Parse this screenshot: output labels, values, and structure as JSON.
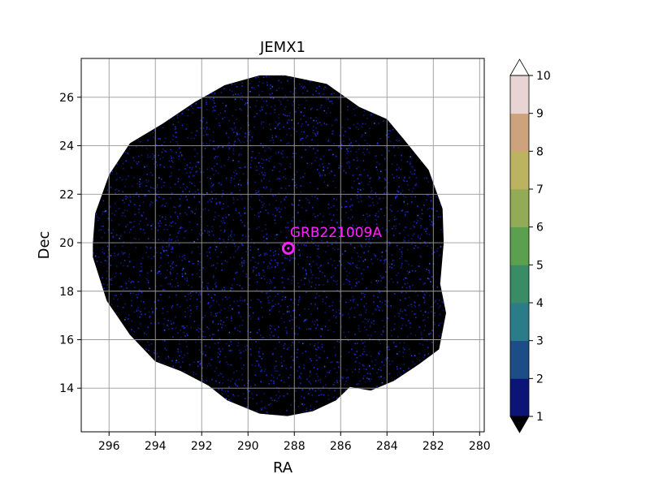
{
  "chart_data": {
    "type": "heatmap",
    "title": "JEMX1",
    "xlabel": "RA",
    "ylabel": "Dec",
    "xlim": [
      297.2,
      279.8
    ],
    "ylim": [
      12.2,
      27.6
    ],
    "x_ticks": [
      296,
      294,
      292,
      290,
      288,
      286,
      284,
      282,
      280
    ],
    "y_ticks": [
      14,
      16,
      18,
      20,
      22,
      24,
      26
    ],
    "grid": true,
    "colorbar": {
      "ticks": [
        1,
        2,
        3,
        4,
        5,
        6,
        7,
        8,
        9,
        10
      ],
      "colors": [
        "#0d1478",
        "#1d4d86",
        "#2a7d88",
        "#3a8c66",
        "#5ba04f",
        "#93ab56",
        "#bbb35f",
        "#cda37e",
        "#e8d4d3"
      ],
      "under_color": "#000000",
      "over_color": "#ffffff",
      "extend": "both"
    },
    "background_color": "#000000",
    "noise_color": "#1a2bd6",
    "coverage_boundary": [
      [
        288.4,
        26.9
      ],
      [
        286.6,
        26.55
      ],
      [
        285.2,
        25.6
      ],
      [
        284.0,
        25.1
      ],
      [
        283.3,
        24.3
      ],
      [
        282.2,
        23.0
      ],
      [
        281.6,
        21.4
      ],
      [
        281.55,
        20.0
      ],
      [
        281.7,
        18.3
      ],
      [
        281.45,
        17.1
      ],
      [
        281.75,
        15.6
      ],
      [
        282.6,
        15.0
      ],
      [
        283.7,
        14.3
      ],
      [
        284.7,
        13.9
      ],
      [
        285.6,
        14.05
      ],
      [
        286.2,
        13.5
      ],
      [
        287.2,
        13.05
      ],
      [
        288.3,
        12.85
      ],
      [
        289.5,
        12.95
      ],
      [
        290.9,
        13.5
      ],
      [
        291.7,
        14.1
      ],
      [
        292.9,
        14.7
      ],
      [
        294.0,
        15.1
      ],
      [
        295.1,
        16.2
      ],
      [
        296.1,
        17.6
      ],
      [
        296.7,
        19.4
      ],
      [
        296.7,
        20.0
      ],
      [
        296.6,
        21.2
      ],
      [
        296.0,
        22.8
      ],
      [
        295.1,
        24.1
      ],
      [
        293.7,
        24.9
      ],
      [
        292.3,
        25.8
      ],
      [
        291.0,
        26.5
      ],
      [
        289.5,
        26.9
      ]
    ],
    "annotations": [
      {
        "label": "GRB221009A",
        "ra": 288.26,
        "dec": 19.77,
        "color": "#ff22ff"
      }
    ]
  }
}
